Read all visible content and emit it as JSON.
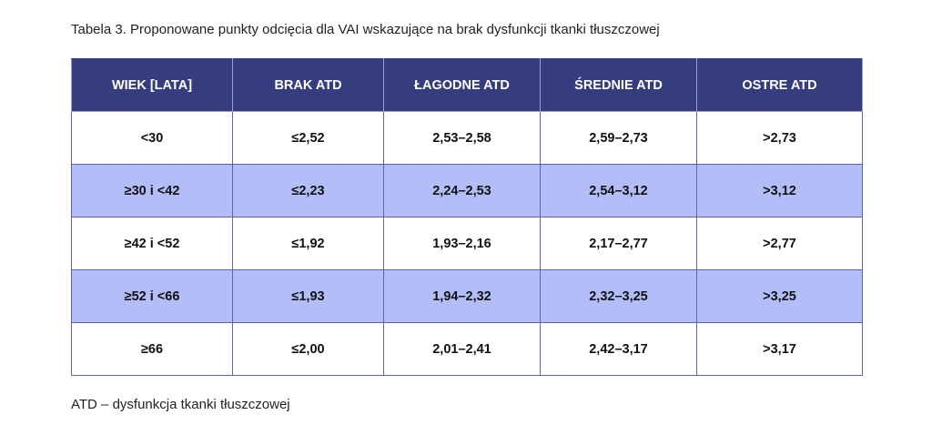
{
  "caption": "Tabela 3. Proponowane punkty odcięcia dla VAI wskazujące na brak dysfunkcji tkanki tłuszczowej",
  "headers": [
    "WIEK [LATA]",
    "BRAK ATD",
    "ŁAGODNE ATD",
    "ŚREDNIE ATD",
    "OSTRE ATD"
  ],
  "rows": [
    [
      "<30",
      "≤2,52",
      "2,53–2,58",
      "2,59–2,73",
      ">2,73"
    ],
    [
      "≥30 i <42",
      "≤2,23",
      "2,24–2,53",
      "2,54–3,12",
      ">3,12"
    ],
    [
      "≥42 i <52",
      "≤1,92",
      "1,93–2,16",
      "2,17–2,77",
      ">2,77"
    ],
    [
      "≥52 i <66",
      "≤1,93",
      "1,94–2,32",
      "2,32–3,25",
      ">3,25"
    ],
    [
      "≥66",
      "≤2,00",
      "2,01–2,41",
      "2,42–3,17",
      ">3,17"
    ]
  ],
  "footnote": "ATD – dysfunkcja tkanki tłuszczowej",
  "colors": {
    "header": "#363d7e",
    "stripe": "#b3bdf7",
    "border": "#5a64a8"
  }
}
